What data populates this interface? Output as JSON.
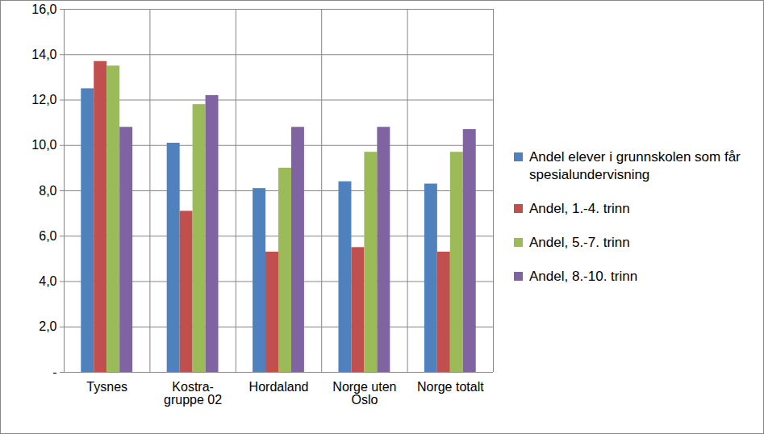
{
  "chart_data": {
    "type": "bar",
    "categories": [
      "Tysnes",
      "Kostra-gruppe 02",
      "Hordaland",
      "Norge uten Oslo",
      "Norge totalt"
    ],
    "series": [
      {
        "name": "Andel elever i grunnskolen som får spesialundervisning",
        "color": "#4F81BD",
        "values": [
          12.5,
          10.1,
          8.1,
          8.4,
          8.3
        ]
      },
      {
        "name": "Andel, 1.-4. trinn",
        "color": "#C0504D",
        "values": [
          13.7,
          7.1,
          5.3,
          5.5,
          5.3
        ]
      },
      {
        "name": "Andel, 5.-7. trinn",
        "color": "#9BBB59",
        "values": [
          13.5,
          11.8,
          9.0,
          9.7,
          9.7
        ]
      },
      {
        "name": "Andel, 8.-10. trinn",
        "color": "#8064A2",
        "values": [
          10.8,
          12.2,
          10.8,
          10.8,
          10.7
        ]
      }
    ],
    "ylim": [
      0,
      16
    ],
    "yticks": [
      {
        "value": 0,
        "label": "-"
      },
      {
        "value": 2,
        "label": "2,0"
      },
      {
        "value": 4,
        "label": "4,0"
      },
      {
        "value": 6,
        "label": "6,0"
      },
      {
        "value": 8,
        "label": "8,0"
      },
      {
        "value": 10,
        "label": "10,0"
      },
      {
        "value": 12,
        "label": "12,0"
      },
      {
        "value": 14,
        "label": "14,0"
      },
      {
        "value": 16,
        "label": "16,0"
      }
    ],
    "grid": true,
    "legend": "right"
  }
}
